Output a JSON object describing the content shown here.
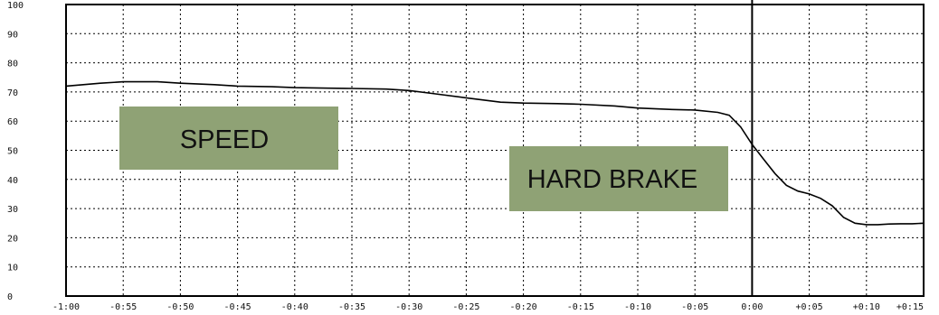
{
  "chart_data": {
    "type": "line",
    "title": "",
    "xlabel": "",
    "ylabel": "",
    "x_ticks": [
      "-1:00",
      "-0:55",
      "-0:50",
      "-0:45",
      "-0:40",
      "-0:35",
      "-0:30",
      "-0:25",
      "-0:20",
      "-0:15",
      "-0:10",
      "-0:05",
      "0:00",
      "+0:05",
      "+0:10",
      "+0:15"
    ],
    "y_ticks": [
      "100",
      "90",
      "80",
      "70",
      "60",
      "50",
      "40",
      "30",
      "20",
      "10",
      "0"
    ],
    "ylim": [
      0,
      100
    ],
    "xlim": [
      -60,
      15
    ],
    "grid": true,
    "event_marker_x": 0,
    "series": [
      {
        "x": [
          -60,
          -57,
          -55,
          -52,
          -50,
          -47,
          -45,
          -42,
          -40,
          -37,
          -35,
          -32,
          -30,
          -28,
          -25,
          -22,
          -20,
          -17,
          -15,
          -12,
          -10,
          -7,
          -5,
          -3,
          -2,
          -1,
          0,
          1,
          2,
          3,
          4,
          5,
          6,
          7,
          8,
          9,
          10,
          11,
          12,
          13,
          14,
          15
        ],
        "y": [
          72,
          73,
          73.5,
          73.5,
          73,
          72.5,
          72,
          71.8,
          71.5,
          71.3,
          71.2,
          71,
          70.5,
          69.5,
          68,
          66.5,
          66.2,
          66,
          65.8,
          65.2,
          64.5,
          64,
          63.8,
          63,
          62,
          58,
          52,
          47,
          42,
          38,
          36,
          35,
          33.5,
          31,
          27,
          25,
          24.5,
          24.5,
          24.7,
          24.8,
          24.8,
          25
        ]
      }
    ],
    "annotations": [
      "SPEED",
      "HARD BRAKE"
    ]
  }
}
